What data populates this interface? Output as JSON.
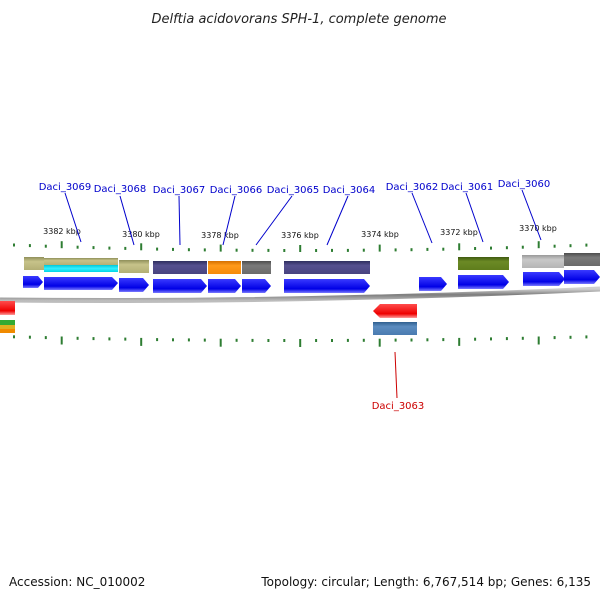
{
  "title": "Delftia acidovorans SPH-1, complete genome",
  "footer": {
    "accession": "Accession: NC_010002",
    "summary": "Topology: circular; Length: 6,767,514 bp; Genes: 6,135"
  },
  "scale_labels": [
    "3382 kbp",
    "3380 kbp",
    "3378 kbp",
    "3376 kbp",
    "3374 kbp",
    "3372 kbp",
    "3370 kbp"
  ],
  "gene_labels": {
    "top": [
      "Daci_3069",
      "Daci_3068",
      "Daci_3067",
      "Daci_3066",
      "Daci_3065",
      "Daci_3064",
      "Daci_3062",
      "Daci_3061",
      "Daci_3060"
    ],
    "bottom": [
      "Daci_3063"
    ]
  },
  "colors": {
    "label_top": "#0000cc",
    "label_bottom": "#cc0000",
    "gene_arrow": "#0000ee",
    "gene_arrow_reverse": "#ff0000",
    "backbone": "#888888",
    "tick": "#2e7d32"
  }
}
